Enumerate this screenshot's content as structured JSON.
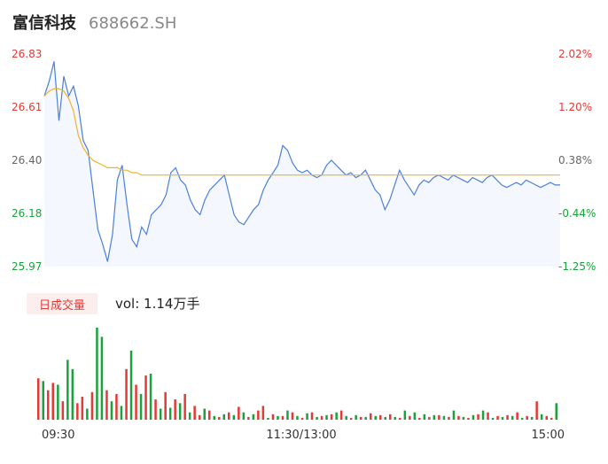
{
  "header": {
    "name": "富信科技",
    "code": "688662.SH"
  },
  "volume_panel": {
    "tab_label": "日成交量",
    "vol_label": "vol: 1.14万手"
  },
  "colors": {
    "up": "#e53935",
    "down": "#1aa33a",
    "price_line": "#4a7fe0",
    "avg_line": "#f0b429",
    "area_fill": "#f4f7fd"
  },
  "chart_data": [
    {
      "type": "line",
      "price_axis": {
        "ticks": [
          "26.83",
          "26.61",
          "26.40",
          "26.18",
          "25.97"
        ],
        "ylim": [
          25.97,
          26.83
        ]
      },
      "pct_axis": {
        "ticks": [
          "2.02%",
          "1.20%",
          "0.38%",
          "-0.44%",
          "-1.25%"
        ]
      },
      "time_labels": [
        "09:30",
        "11:30/13:00",
        "15:00"
      ],
      "series": [
        {
          "values": [
            26.66,
            26.72,
            26.8,
            26.56,
            26.74,
            26.66,
            26.7,
            26.62,
            26.48,
            26.44,
            26.28,
            26.12,
            26.06,
            25.99,
            26.1,
            26.32,
            26.38,
            26.22,
            26.08,
            26.05,
            26.13,
            26.1,
            26.18,
            26.2,
            26.22,
            26.26,
            26.35,
            26.37,
            26.32,
            26.3,
            26.24,
            26.2,
            26.18,
            26.24,
            26.28,
            26.3,
            26.32,
            26.34,
            26.26,
            26.18,
            26.15,
            26.14,
            26.17,
            26.2,
            26.22,
            26.28,
            26.32,
            26.35,
            26.38,
            26.46,
            26.44,
            26.39,
            26.36,
            26.35,
            26.36,
            26.34,
            26.33,
            26.34,
            26.38,
            26.4,
            26.38,
            26.36,
            26.34,
            26.35,
            26.33,
            26.34,
            26.36,
            26.32,
            26.28,
            26.26,
            26.2,
            26.24,
            26.3,
            26.36,
            26.32,
            26.29,
            26.26,
            26.3,
            26.32,
            26.31,
            26.33,
            26.34,
            26.33,
            26.32,
            26.34,
            26.33,
            26.32,
            26.31,
            26.33,
            26.32,
            26.31,
            26.33,
            26.34,
            26.32,
            26.3,
            26.29,
            26.3,
            26.31,
            26.3,
            26.32,
            26.31,
            26.3,
            26.29,
            26.3,
            26.31,
            26.3,
            26.3
          ]
        },
        {
          "values": [
            26.66,
            26.68,
            26.69,
            26.69,
            26.68,
            26.65,
            26.6,
            26.5,
            26.45,
            26.42,
            26.4,
            26.39,
            26.38,
            26.37,
            26.37,
            26.37,
            26.36,
            26.36,
            26.35,
            26.35,
            26.34,
            26.34,
            26.34,
            26.34,
            26.34,
            26.34,
            26.34,
            26.34,
            26.34,
            26.34,
            26.34,
            26.34,
            26.34,
            26.34,
            26.34,
            26.34,
            26.34,
            26.34,
            26.34,
            26.34,
            26.34,
            26.34,
            26.34,
            26.34,
            26.34,
            26.34,
            26.34,
            26.34,
            26.34,
            26.34,
            26.34,
            26.34,
            26.34,
            26.34,
            26.34,
            26.34,
            26.34,
            26.34,
            26.34,
            26.34,
            26.34,
            26.34,
            26.34,
            26.34,
            26.34,
            26.34,
            26.34,
            26.34,
            26.34,
            26.34,
            26.34,
            26.34,
            26.34,
            26.34,
            26.34,
            26.34,
            26.34,
            26.34,
            26.34,
            26.34,
            26.34,
            26.34,
            26.34,
            26.34,
            26.34,
            26.34,
            26.34,
            26.34,
            26.34,
            26.34,
            26.34,
            26.34,
            26.34,
            26.34,
            26.34,
            26.34,
            26.34,
            26.34,
            26.34,
            26.34,
            26.34,
            26.34,
            26.34,
            26.34,
            26.34,
            26.34,
            26.34
          ]
        }
      ]
    },
    {
      "type": "bar",
      "values": [
        0.45,
        0.42,
        0.32,
        0.4,
        0.38,
        0.2,
        0.65,
        0.55,
        0.18,
        0.25,
        0.12,
        0.3,
        1.0,
        0.9,
        0.32,
        0.2,
        0.28,
        0.15,
        0.55,
        0.75,
        0.38,
        0.28,
        0.48,
        0.5,
        0.22,
        0.12,
        0.3,
        0.13,
        0.22,
        0.18,
        0.28,
        0.08,
        0.15,
        0.05,
        0.12,
        0.1,
        0.04,
        0.03,
        0.06,
        0.08,
        0.05,
        0.14,
        0.08,
        0.03,
        0.06,
        0.1,
        0.15,
        0.02,
        0.06,
        0.04,
        0.04,
        0.1,
        0.08,
        0.04,
        0.02,
        0.07,
        0.08,
        0.03,
        0.04,
        0.05,
        0.06,
        0.08,
        0.1,
        0.04,
        0.02,
        0.05,
        0.03,
        0.03,
        0.07,
        0.04,
        0.05,
        0.03,
        0.06,
        0.03,
        0.02,
        0.1,
        0.04,
        0.08,
        0.02,
        0.06,
        0.03,
        0.05,
        0.05,
        0.04,
        0.03,
        0.1,
        0.04,
        0.03,
        0.02,
        0.05,
        0.06,
        0.1,
        0.08,
        0.02,
        0.04,
        0.03,
        0.05,
        0.04,
        0.08,
        0.02,
        0.04,
        0.03,
        0.2,
        0.06,
        0.04,
        0.02,
        0.18
      ],
      "directions": [
        "up",
        "down",
        "up",
        "up",
        "down",
        "up",
        "down",
        "down",
        "up",
        "up",
        "down",
        "up",
        "down",
        "down",
        "up",
        "down",
        "up",
        "down",
        "up",
        "down",
        "up",
        "down",
        "up",
        "down",
        "up",
        "down",
        "up",
        "down",
        "up",
        "down",
        "up",
        "down",
        "up",
        "up",
        "down",
        "up",
        "down",
        "up",
        "down",
        "up",
        "down",
        "up",
        "down",
        "up",
        "down",
        "up",
        "up",
        "down",
        "up",
        "down",
        "up",
        "down",
        "up",
        "down",
        "up",
        "down",
        "up",
        "down",
        "up",
        "down",
        "up",
        "down",
        "up",
        "down",
        "up",
        "down",
        "up",
        "down",
        "up",
        "down",
        "up",
        "down",
        "up",
        "down",
        "up",
        "down",
        "up",
        "down",
        "up",
        "down",
        "up",
        "down",
        "up",
        "down",
        "up",
        "down",
        "up",
        "down",
        "up",
        "down",
        "up",
        "down",
        "up",
        "down",
        "up",
        "down",
        "up",
        "down",
        "up",
        "down",
        "up",
        "down",
        "up",
        "down",
        "up",
        "up",
        "down"
      ]
    }
  ]
}
